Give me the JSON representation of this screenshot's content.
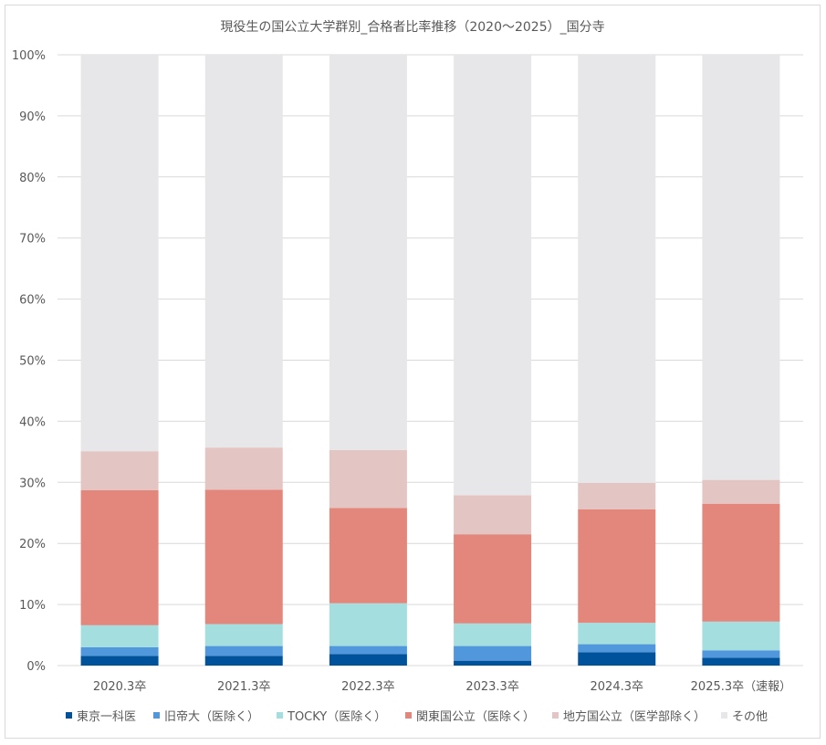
{
  "chart_data": {
    "type": "bar",
    "stacked": true,
    "title": "現役生の国公立大学群別_合格者比率推移（2020～2025）_国分寺",
    "xlabel": "",
    "ylabel": "",
    "ylim": [
      0,
      100
    ],
    "yticks": [
      "0%",
      "10%",
      "20%",
      "30%",
      "40%",
      "50%",
      "60%",
      "70%",
      "80%",
      "90%",
      "100%"
    ],
    "grid": true,
    "legend_position": "bottom",
    "categories": [
      "2020.3卒",
      "2021.3卒",
      "2022.3卒",
      "2023.3卒",
      "2024.3卒",
      "2025.3卒（速報）"
    ],
    "series": [
      {
        "name": "東京一科医",
        "color": "#00529b",
        "values": [
          1.6,
          1.6,
          1.9,
          0.8,
          2.2,
          1.3
        ]
      },
      {
        "name": "旧帝大（医除く）",
        "color": "#5097db",
        "values": [
          1.4,
          1.6,
          1.3,
          2.4,
          1.3,
          1.2
        ]
      },
      {
        "name": "TOCKY（医除く）",
        "color": "#a5dedf",
        "values": [
          3.6,
          3.6,
          7.0,
          3.7,
          3.5,
          4.7
        ]
      },
      {
        "name": "関東国公立（医除く）",
        "color": "#e3867b",
        "values": [
          22.1,
          22.0,
          15.6,
          14.6,
          18.6,
          19.3
        ]
      },
      {
        "name": "地方国公立（医学部除く）",
        "color": "#e3c6c3",
        "values": [
          6.4,
          6.9,
          9.5,
          6.4,
          4.3,
          3.9
        ]
      },
      {
        "name": "その他",
        "color": "#e7e7e9",
        "values": [
          64.9,
          64.3,
          64.7,
          72.1,
          70.1,
          69.6
        ]
      }
    ]
  }
}
